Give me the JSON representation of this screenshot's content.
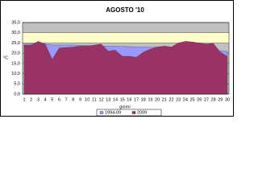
{
  "chart_data": {
    "type": "area",
    "title": "AGOSTO '10",
    "ylabel": "°C",
    "xlabel": "giorni",
    "categories": [
      "1",
      "2",
      "3",
      "4",
      "5",
      "6",
      "7",
      "8",
      "9",
      "10",
      "11",
      "12",
      "13",
      "14",
      "15",
      "16",
      "17",
      "18",
      "19",
      "20",
      "21",
      "22",
      "23",
      "24",
      "25",
      "26",
      "27",
      "28",
      "29",
      "30"
    ],
    "series": [
      {
        "name": "1994-09",
        "color": "#9999ff",
        "values": [
          24.5,
          24.5,
          25,
          24.5,
          24,
          24,
          24,
          24,
          23.8,
          23.8,
          23.6,
          23.5,
          23.5,
          23.4,
          23.3,
          23.2,
          23,
          23,
          23,
          23,
          23,
          22.8,
          22.7,
          22.5,
          22.5,
          22.3,
          22,
          21.8,
          21.2,
          20.8
        ]
      },
      {
        "name": "2009",
        "color": "#993366",
        "values": [
          24,
          24,
          25.8,
          24.5,
          17,
          22.5,
          22.8,
          23,
          23.5,
          23.5,
          24,
          24.5,
          21,
          21.5,
          18.5,
          18.5,
          18,
          20.5,
          22,
          23,
          23.5,
          23,
          25,
          25.8,
          25.5,
          25,
          24.5,
          24.8,
          20.5,
          18.5
        ]
      }
    ],
    "ylim": [
      0,
      35
    ],
    "yticks": [
      {
        "value": 0,
        "label": "0,0"
      },
      {
        "value": 5,
        "label": "5,0"
      },
      {
        "value": 10,
        "label": "10,0"
      },
      {
        "value": 15,
        "label": "15,0"
      },
      {
        "value": 20,
        "label": "20,0"
      },
      {
        "value": 25,
        "label": "25,0"
      },
      {
        "value": 30,
        "label": "30,0"
      },
      {
        "value": 35,
        "label": "35,0"
      }
    ],
    "band": [
      25,
      30
    ],
    "band_color": "#ffffcc",
    "plot_color": "#c0c0c0",
    "grid": true,
    "legend": "bottom"
  }
}
